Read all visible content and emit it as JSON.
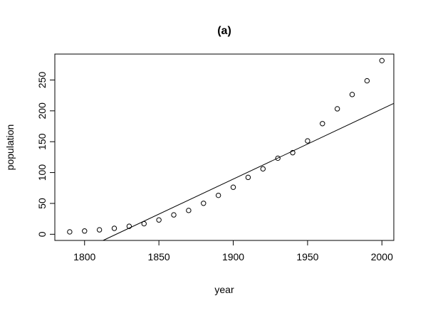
{
  "chart_data": {
    "type": "scatter",
    "title": "(a)",
    "xlabel": "year",
    "ylabel": "population",
    "xlim": [
      1780,
      2008
    ],
    "ylim": [
      -10,
      292
    ],
    "x_ticks": [
      1800,
      1850,
      1900,
      1950,
      2000
    ],
    "y_ticks": [
      0,
      50,
      100,
      150,
      200,
      250
    ],
    "grid": false,
    "legend": "none",
    "series": [
      {
        "marker": "open-circle",
        "x": [
          1790,
          1800,
          1810,
          1820,
          1830,
          1840,
          1850,
          1860,
          1870,
          1880,
          1890,
          1900,
          1910,
          1920,
          1930,
          1940,
          1950,
          1960,
          1970,
          1980,
          1990,
          2000
        ],
        "y": [
          3.9,
          5.3,
          7.2,
          9.6,
          12.9,
          17.1,
          23.2,
          31.4,
          38.6,
          50.2,
          63.0,
          76.2,
          92.2,
          106.0,
          123.2,
          132.2,
          151.3,
          179.3,
          203.3,
          226.5,
          248.7,
          281.4
        ]
      }
    ],
    "fit_line": {
      "type": "linear",
      "intercept": -2068.2,
      "slope": 1.1356
    }
  }
}
